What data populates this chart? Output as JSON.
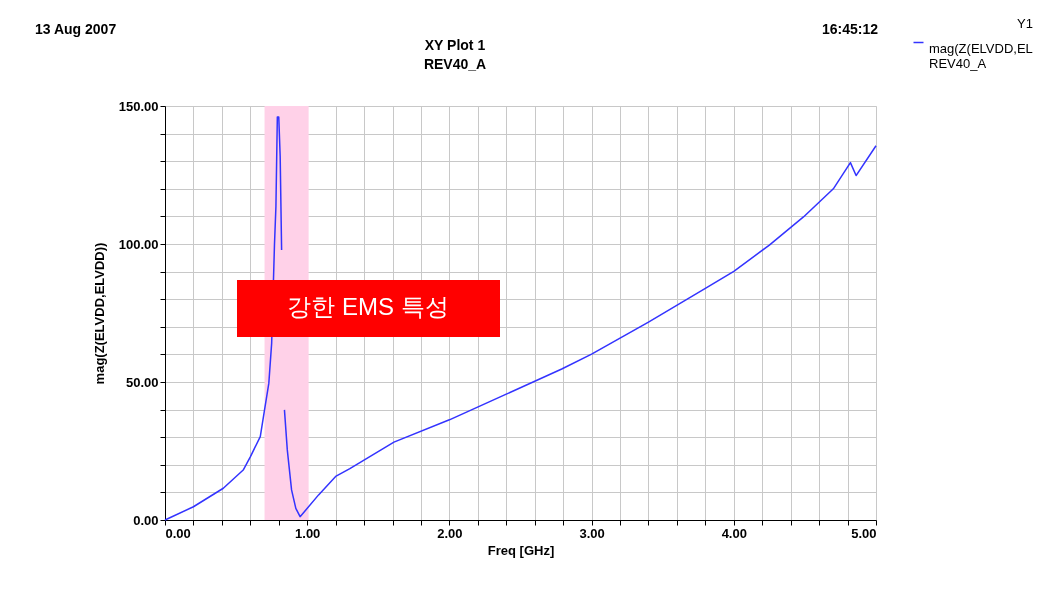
{
  "chart_data": {
    "type": "line",
    "title": "XY Plot 1",
    "subtitle": "REV40_A",
    "xlabel": "Freq [GHz]",
    "ylabel": "mag(Z(ELVDD,ELVDD))",
    "legend_title": "Y1",
    "legend": "right",
    "grid": true,
    "marker": "none",
    "line_style": "solid",
    "annotations": [
      "13 Aug 2007",
      "16:45:12",
      "강한  EMS 특성"
    ],
    "xlim": [
      0,
      5
    ],
    "ylim": [
      0,
      150
    ],
    "xticks": [
      {
        "value": 0,
        "label": "0.00"
      },
      {
        "value": 0.2,
        "label": null
      },
      {
        "value": 0.4,
        "label": null
      },
      {
        "value": 0.6,
        "label": null
      },
      {
        "value": 0.8,
        "label": null
      },
      {
        "value": 1,
        "label": "1.00"
      },
      {
        "value": 1.2,
        "label": null
      },
      {
        "value": 1.4,
        "label": null
      },
      {
        "value": 1.6,
        "label": null
      },
      {
        "value": 1.8,
        "label": null
      },
      {
        "value": 2,
        "label": "2.00"
      },
      {
        "value": 2.2,
        "label": null
      },
      {
        "value": 2.4,
        "label": null
      },
      {
        "value": 2.6,
        "label": null
      },
      {
        "value": 2.8,
        "label": null
      },
      {
        "value": 3,
        "label": "3.00"
      },
      {
        "value": 3.2,
        "label": null
      },
      {
        "value": 3.4,
        "label": null
      },
      {
        "value": 3.6,
        "label": null
      },
      {
        "value": 3.8,
        "label": null
      },
      {
        "value": 4,
        "label": "4.00"
      },
      {
        "value": 4.2,
        "label": null
      },
      {
        "value": 4.4,
        "label": null
      },
      {
        "value": 4.6,
        "label": null
      },
      {
        "value": 4.8,
        "label": null
      },
      {
        "value": 5,
        "label": "5.00"
      }
    ],
    "yticks": [
      {
        "value": 0,
        "label": "0.00"
      },
      {
        "value": 10,
        "label": null
      },
      {
        "value": 20,
        "label": null
      },
      {
        "value": 30,
        "label": null
      },
      {
        "value": 40,
        "label": null
      },
      {
        "value": 50,
        "label": "50.00"
      },
      {
        "value": 60,
        "label": null
      },
      {
        "value": 70,
        "label": null
      },
      {
        "value": 80,
        "label": null
      },
      {
        "value": 90,
        "label": null
      },
      {
        "value": 100,
        "label": "100.00"
      },
      {
        "value": 110,
        "label": null
      },
      {
        "value": 120,
        "label": null
      },
      {
        "value": 130,
        "label": null
      },
      {
        "value": 140,
        "label": null
      },
      {
        "value": 150,
        "label": "150.00"
      }
    ],
    "bands": [
      {
        "axis": "x",
        "from": 0.7,
        "to": 1.01,
        "label": null,
        "color": "#ffd1e8"
      }
    ],
    "x": [
      0,
      0.2,
      0.41,
      0.55,
      0.6,
      0.67,
      0.7,
      0.73,
      0.75,
      0.77,
      0.78,
      0.79,
      0.8,
      0.81,
      0.82,
      0.83,
      0.84,
      0.86,
      0.89,
      0.92,
      0.95,
      0.98,
      1.08,
      1.2,
      1.3,
      1.61,
      2.0,
      2.4,
      2.79,
      3.0,
      3.4,
      3.8,
      4.0,
      4.25,
      4.49,
      4.7,
      4.82,
      4.86,
      5.0
    ],
    "series": [
      {
        "name": "mag(Z(ELVDD,EL\nREV40_A",
        "color": "#3333ff",
        "values": [
          0,
          4.8,
          11.5,
          18.1,
          22.9,
          30.2,
          39.9,
          49.5,
          64,
          100,
          113.5,
          146,
          146,
          131.6,
          97.8,
          null,
          39.9,
          25.4,
          10.9,
          4.2,
          1.2,
          3.0,
          9.1,
          15.8,
          18.6,
          28.2,
          36.3,
          45.6,
          54.7,
          60.1,
          71.7,
          83.9,
          90.1,
          99.6,
          109.8,
          120,
          129.5,
          124.8,
          135.6
        ]
      }
    ]
  }
}
